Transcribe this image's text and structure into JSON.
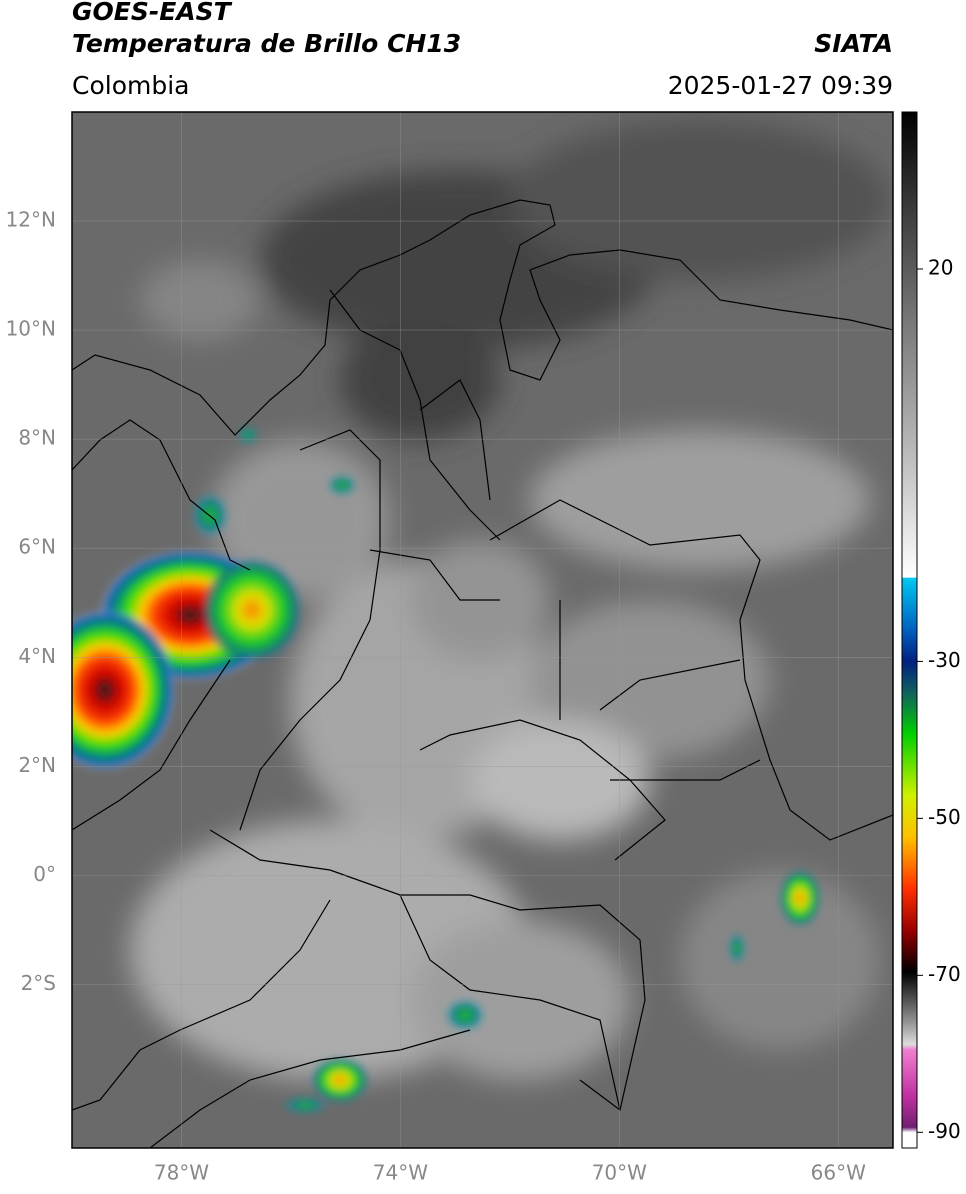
{
  "header": {
    "title": "GOES-EAST",
    "subtitle": "Temperatura de Brillo CH13",
    "region": "Colombia",
    "source": "SIATA",
    "datetime": "2025-01-27 09:39"
  },
  "map": {
    "lonlim": [
      -80,
      -65
    ],
    "latlim": [
      -5,
      14
    ],
    "lat_ticks": [
      {
        "value": 12,
        "label": "12°N"
      },
      {
        "value": 10,
        "label": "10°N"
      },
      {
        "value": 8,
        "label": "8°N"
      },
      {
        "value": 6,
        "label": "6°N"
      },
      {
        "value": 4,
        "label": "4°N"
      },
      {
        "value": 2,
        "label": "2°N"
      },
      {
        "value": 0,
        "label": "0°"
      },
      {
        "value": -2,
        "label": "2°S"
      }
    ],
    "lon_ticks": [
      {
        "value": -78,
        "label": "78°W"
      },
      {
        "value": -74,
        "label": "74°W"
      },
      {
        "value": -70,
        "label": "70°W"
      },
      {
        "value": -66,
        "label": "66°W"
      }
    ],
    "grid": true
  },
  "colorbar": {
    "lim": [
      -92,
      40
    ],
    "ticks": [
      20,
      -30,
      -50,
      -70,
      -90
    ]
  }
}
